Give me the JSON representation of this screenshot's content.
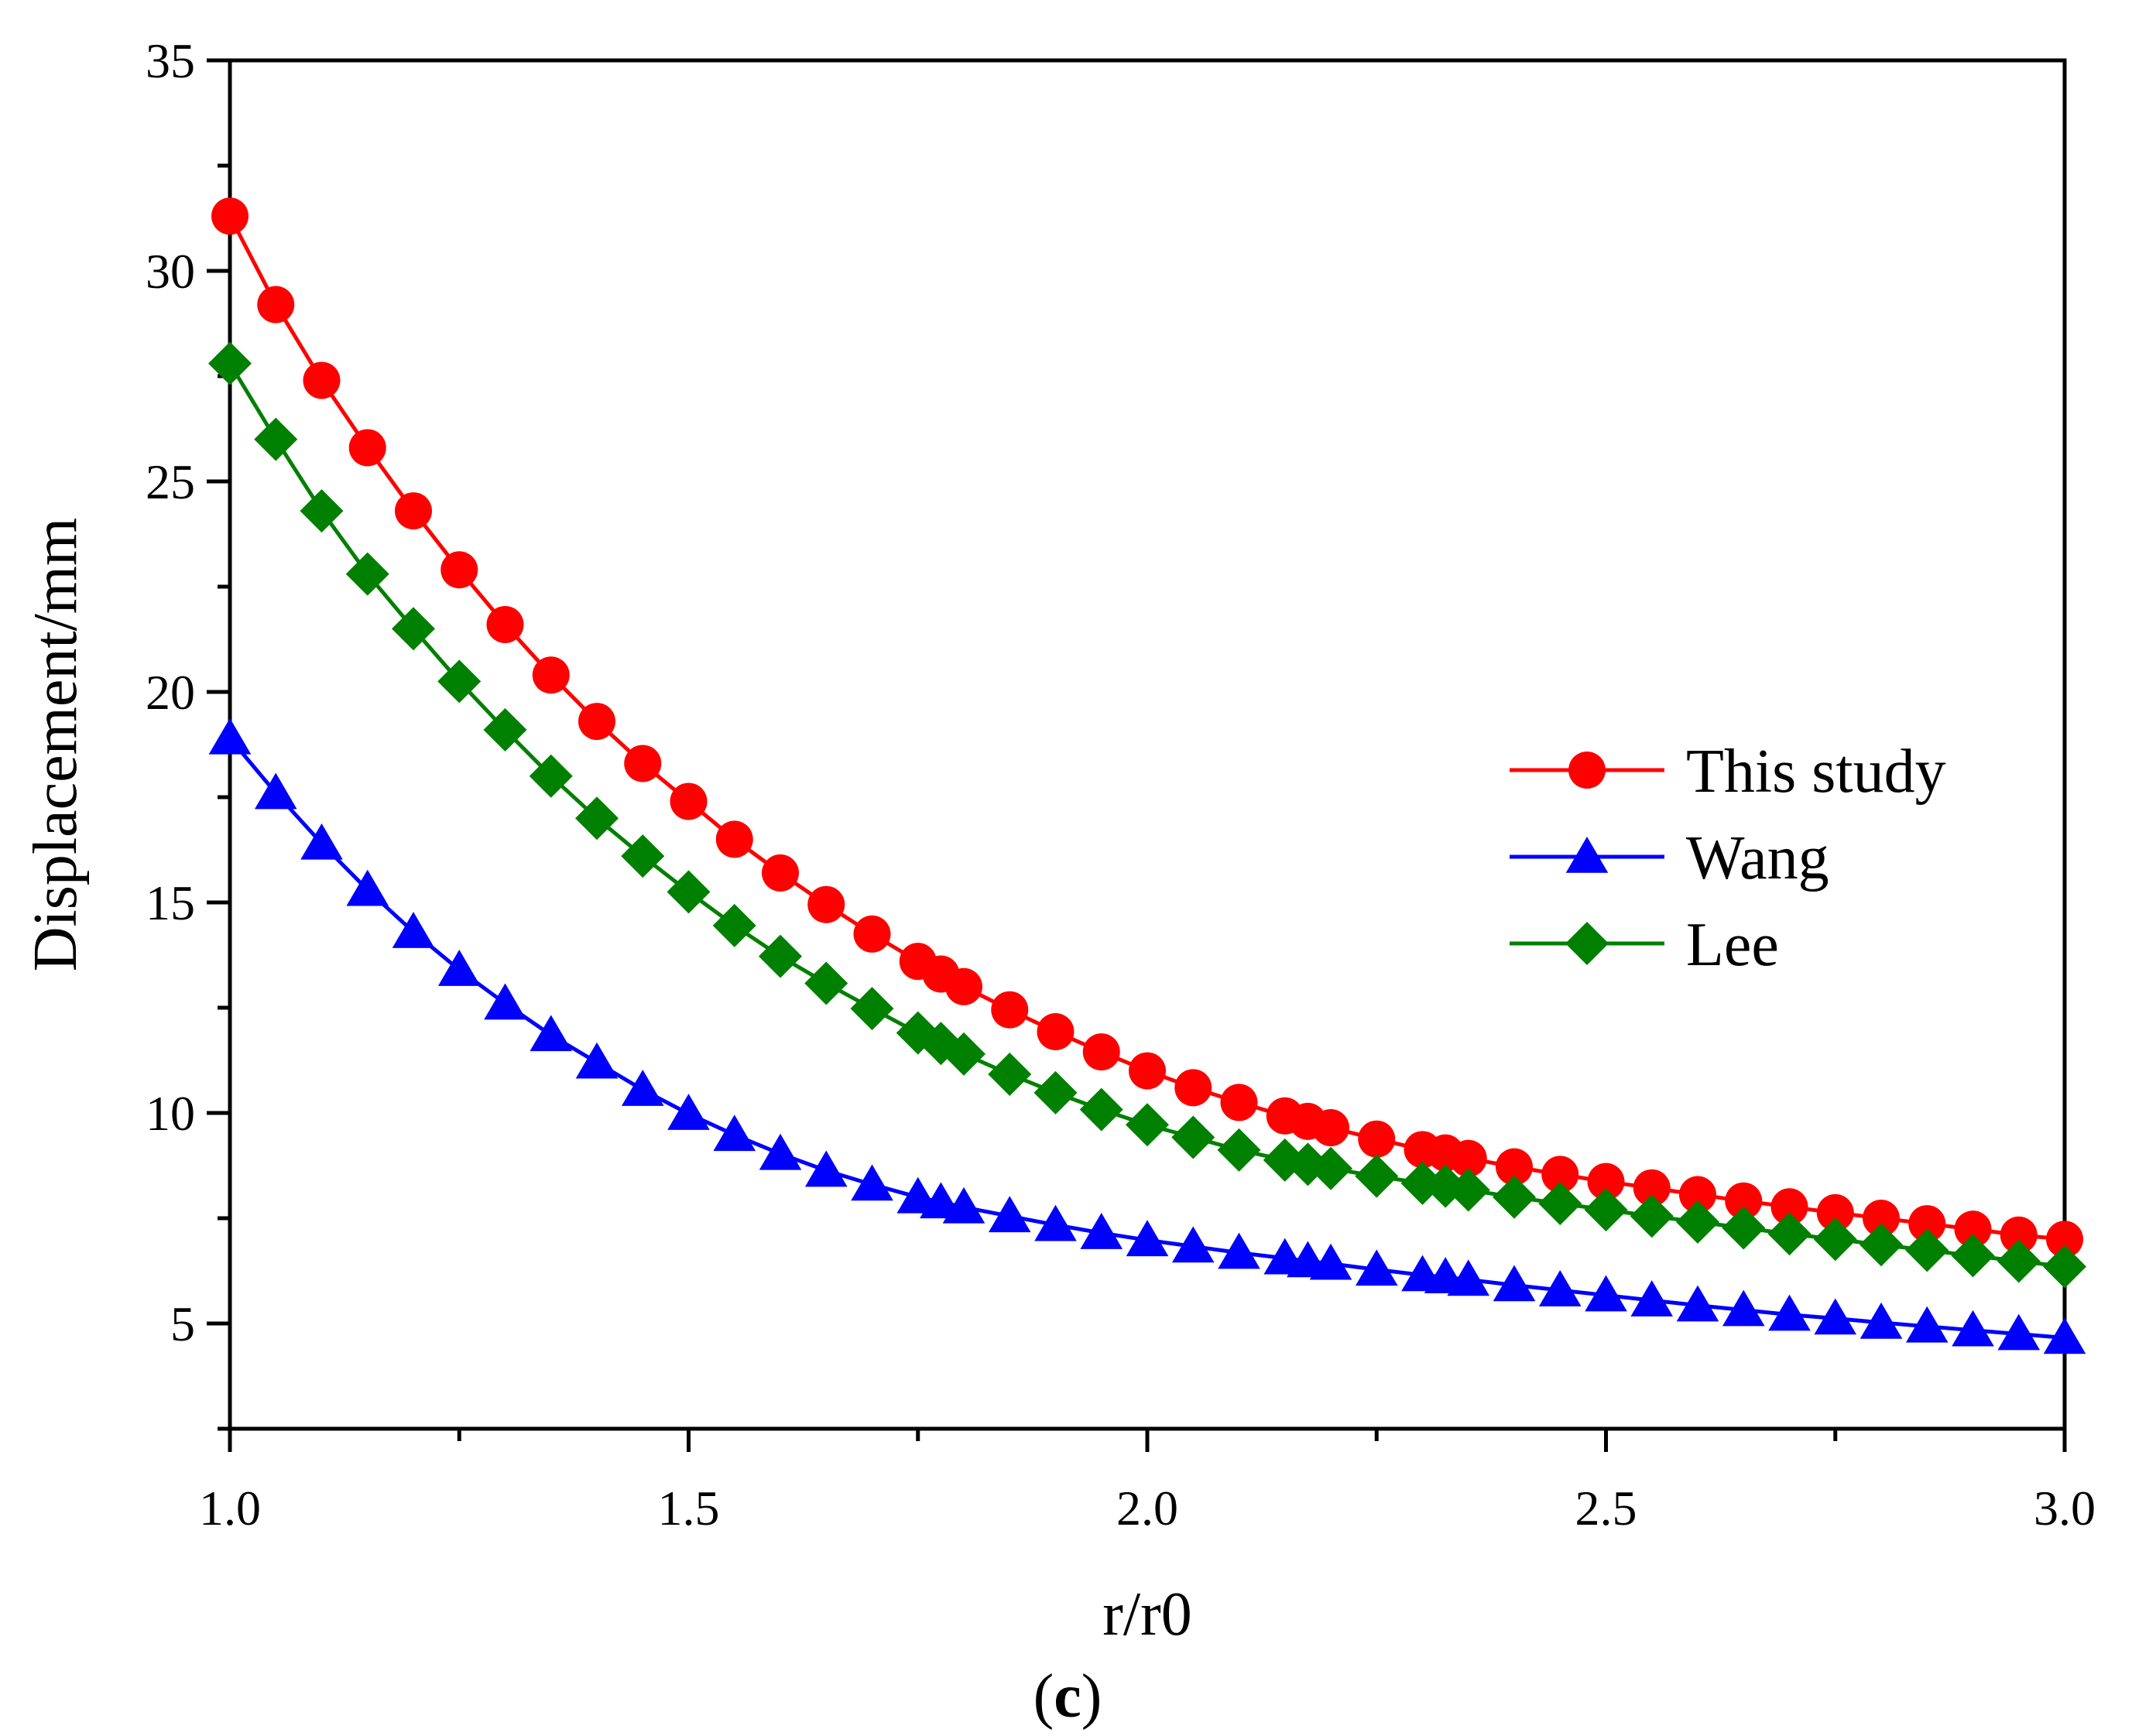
{
  "chart_data": {
    "type": "line",
    "title": "",
    "xlabel": "r/r0",
    "ylabel": "Displacement/mm",
    "xlim": [
      1.0,
      3.0
    ],
    "ylim": [
      2.5,
      35
    ],
    "x_ticks": [
      "1.0",
      "1.5",
      "2.0",
      "2.5",
      "3.0"
    ],
    "y_ticks": [
      "5",
      "10",
      "15",
      "20",
      "25",
      "30",
      "35"
    ],
    "legend_position": "right-middle",
    "caption": {
      "open": "(",
      "letter": "c",
      "close": ")"
    },
    "x": [
      1.0,
      1.05,
      1.1,
      1.15,
      1.2,
      1.25,
      1.3,
      1.35,
      1.4,
      1.45,
      1.5,
      1.55,
      1.6,
      1.65,
      1.7,
      1.75,
      1.775,
      1.8,
      1.85,
      1.9,
      1.95,
      2.0,
      2.05,
      2.1,
      2.15,
      2.175,
      2.2,
      2.25,
      2.3,
      2.325,
      2.35,
      2.4,
      2.45,
      2.5,
      2.55,
      2.6,
      2.65,
      2.7,
      2.75,
      2.8,
      2.85,
      2.9,
      2.95,
      3.0
    ],
    "series": [
      {
        "name": "This study",
        "color": "#ff0000",
        "marker": "circle",
        "values": [
          31.3,
          29.2,
          27.4,
          25.8,
          24.3,
          22.9,
          21.6,
          20.4,
          19.3,
          18.3,
          17.4,
          16.5,
          15.7,
          14.95,
          14.25,
          13.6,
          13.3,
          13.0,
          12.45,
          11.93,
          11.45,
          11.0,
          10.6,
          10.25,
          9.93,
          9.8,
          9.65,
          9.38,
          9.13,
          9.05,
          8.92,
          8.72,
          8.54,
          8.37,
          8.22,
          8.06,
          7.91,
          7.77,
          7.63,
          7.5,
          7.37,
          7.24,
          7.1,
          7.0
        ]
      },
      {
        "name": "Wang",
        "color": "#0000ff",
        "marker": "triangle",
        "values": [
          18.9,
          17.6,
          16.4,
          15.3,
          14.3,
          13.4,
          12.6,
          11.85,
          11.2,
          10.55,
          9.98,
          9.48,
          9.03,
          8.63,
          8.3,
          8.0,
          7.88,
          7.76,
          7.55,
          7.34,
          7.15,
          6.98,
          6.83,
          6.68,
          6.55,
          6.48,
          6.42,
          6.28,
          6.15,
          6.1,
          6.04,
          5.91,
          5.79,
          5.67,
          5.55,
          5.43,
          5.32,
          5.21,
          5.12,
          5.02,
          4.93,
          4.84,
          4.75,
          4.66
        ]
      },
      {
        "name": "Lee",
        "color": "#008000",
        "marker": "diamond",
        "values": [
          27.8,
          26.0,
          24.3,
          22.8,
          21.5,
          20.25,
          19.1,
          18.0,
          17.0,
          16.1,
          15.25,
          14.45,
          13.72,
          13.08,
          12.48,
          11.9,
          11.65,
          11.4,
          10.92,
          10.48,
          10.08,
          9.72,
          9.42,
          9.12,
          8.88,
          8.78,
          8.68,
          8.5,
          8.33,
          8.26,
          8.17,
          8.0,
          7.85,
          7.7,
          7.55,
          7.41,
          7.27,
          7.13,
          7.0,
          6.87,
          6.74,
          6.61,
          6.48,
          6.35
        ]
      }
    ]
  }
}
